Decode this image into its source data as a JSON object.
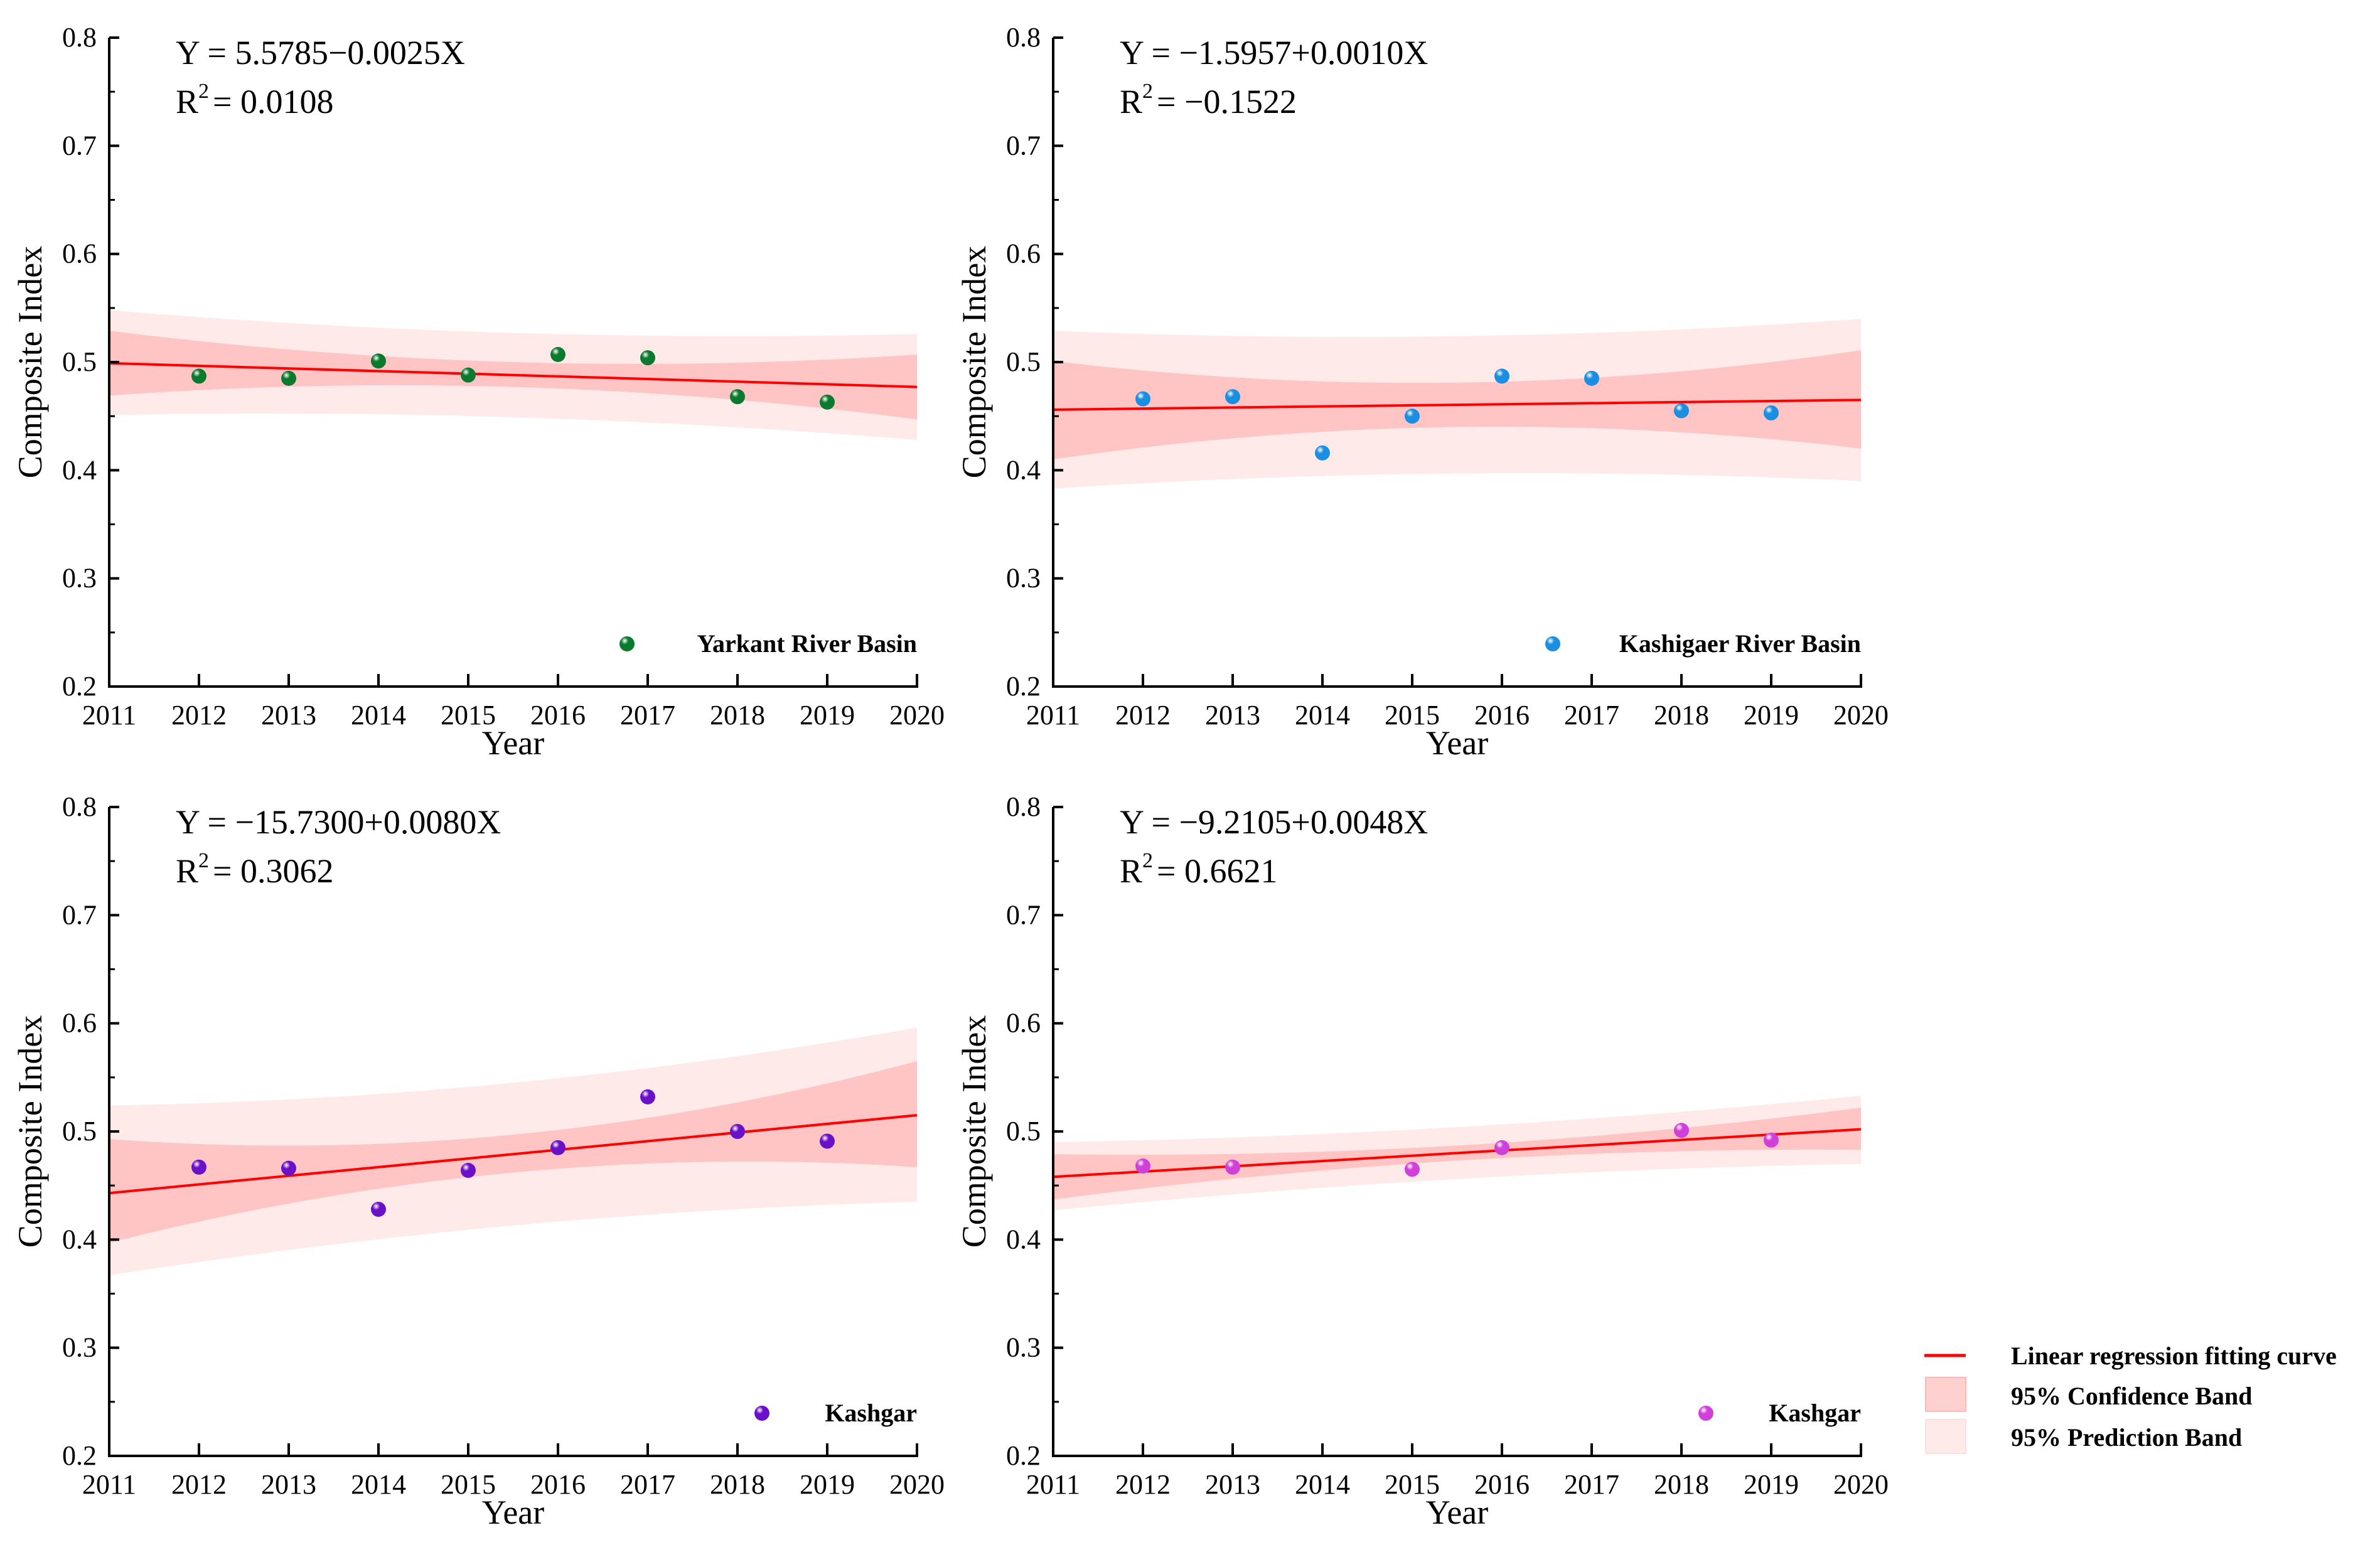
{
  "legend": {
    "line_label": "Linear regression fitting curve",
    "conf_label": "95% Confidence Band",
    "pred_label": "95% Prediction Band"
  },
  "colors": {
    "line": "#ff0000",
    "conf": "#ffc4c4",
    "pred": "#ffeaea"
  },
  "chart_data": [
    {
      "type": "scatter",
      "title": "Yarkant River Basin",
      "series_name": "Yarkant River Basin",
      "equation": "Y  = 5.5785−0.0025X",
      "r2_prefix": "R",
      "r2_sup": "2",
      "r2_value": "= 0.0108",
      "xlabel": "Year",
      "ylabel": "Composite Index",
      "xlim": [
        2011,
        2020
      ],
      "ylim": [
        0.2,
        0.8
      ],
      "xticks": [
        "2011",
        "2012",
        "2013",
        "2014",
        "2015",
        "2016",
        "2017",
        "2018",
        "2019",
        "2020"
      ],
      "yticks": [
        "0.2",
        "0.3",
        "0.4",
        "0.5",
        "0.6",
        "0.7",
        "0.8"
      ],
      "marker_color": "#0a7a2e",
      "x": [
        2012,
        2013,
        2014,
        2015,
        2016,
        2017,
        2018,
        2019
      ],
      "y": [
        0.487,
        0.485,
        0.501,
        0.488,
        0.507,
        0.504,
        0.468,
        0.463
      ],
      "fit": [
        0.499,
        0.477
      ],
      "band_x": [
        2011,
        2015.5,
        2020
      ],
      "conf_lower": [
        0.469,
        0.477,
        0.447
      ],
      "conf_upper": [
        0.529,
        0.5,
        0.507
      ],
      "pred_lower": [
        0.451,
        0.449,
        0.428
      ],
      "pred_upper": [
        0.548,
        0.527,
        0.526
      ]
    },
    {
      "type": "scatter",
      "title": "Kashigaer River Basin",
      "series_name": "Kashigaer River Basin",
      "equation": "Y  = −1.5957+0.0010X",
      "r2_prefix": "R",
      "r2_sup": "2",
      "r2_value": "= −0.1522",
      "xlabel": "Year",
      "ylabel": "Composite Index",
      "xlim": [
        2011,
        2020
      ],
      "ylim": [
        0.2,
        0.8
      ],
      "xticks": [
        "2011",
        "2012",
        "2013",
        "2014",
        "2015",
        "2016",
        "2017",
        "2018",
        "2019",
        "2020"
      ],
      "yticks": [
        "0.2",
        "0.3",
        "0.4",
        "0.5",
        "0.6",
        "0.7",
        "0.8"
      ],
      "marker_color": "#1a8ee0",
      "x": [
        2012,
        2013,
        2014,
        2015,
        2016,
        2017,
        2018,
        2019
      ],
      "y": [
        0.466,
        0.468,
        0.416,
        0.45,
        0.487,
        0.485,
        0.455,
        0.453
      ],
      "fit": [
        0.456,
        0.465
      ],
      "band_x": [
        2011,
        2015.5,
        2020
      ],
      "conf_lower": [
        0.41,
        0.44,
        0.42
      ],
      "conf_upper": [
        0.501,
        0.481,
        0.511
      ],
      "pred_lower": [
        0.383,
        0.397,
        0.39
      ],
      "pred_upper": [
        0.529,
        0.524,
        0.54
      ]
    },
    {
      "type": "scatter",
      "title": "Kashgar",
      "series_name": "Kashgar",
      "equation": "Y  = −15.7300+0.0080X",
      "r2_prefix": "R",
      "r2_sup": "2",
      "r2_value": "= 0.3062",
      "xlabel": "Year",
      "ylabel": "Composite Index",
      "xlim": [
        2011,
        2020
      ],
      "ylim": [
        0.2,
        0.8
      ],
      "xticks": [
        "2011",
        "2012",
        "2013",
        "2014",
        "2015",
        "2016",
        "2017",
        "2018",
        "2019",
        "2020"
      ],
      "yticks": [
        "0.2",
        "0.3",
        "0.4",
        "0.5",
        "0.6",
        "0.7",
        "0.8"
      ],
      "marker_color": "#6a10c8",
      "x": [
        2012,
        2013,
        2014,
        2015,
        2016,
        2017,
        2018,
        2019
      ],
      "y": [
        0.467,
        0.466,
        0.428,
        0.464,
        0.485,
        0.532,
        0.5,
        0.491
      ],
      "fit": [
        0.443,
        0.515
      ],
      "band_x": [
        2011,
        2015.5,
        2020
      ],
      "conf_lower": [
        0.397,
        0.462,
        0.467
      ],
      "conf_upper": [
        0.493,
        0.497,
        0.565
      ],
      "pred_lower": [
        0.367,
        0.413,
        0.435
      ],
      "pred_upper": [
        0.524,
        0.545,
        0.596
      ]
    },
    {
      "type": "scatter",
      "title": "Kashgar",
      "series_name": "Kashgar",
      "equation": "Y  = −9.2105+0.0048X",
      "r2_prefix": "R",
      "r2_sup": "2",
      "r2_value": "= 0.6621",
      "xlabel": "Year",
      "ylabel": "Composite Index",
      "xlim": [
        2011,
        2020
      ],
      "ylim": [
        0.2,
        0.8
      ],
      "xticks": [
        "2011",
        "2012",
        "2013",
        "2014",
        "2015",
        "2016",
        "2017",
        "2018",
        "2019",
        "2020"
      ],
      "yticks": [
        "0.2",
        "0.3",
        "0.4",
        "0.5",
        "0.6",
        "0.7",
        "0.8"
      ],
      "marker_color": "#d040d8",
      "x": [
        2012,
        2013,
        2015,
        2016,
        2018,
        2019
      ],
      "y": [
        0.468,
        0.467,
        0.465,
        0.485,
        0.501,
        0.492
      ],
      "fit": [
        0.458,
        0.502
      ],
      "band_x": [
        2011,
        2015.5,
        2020
      ],
      "conf_lower": [
        0.437,
        0.473,
        0.483
      ],
      "conf_upper": [
        0.479,
        0.487,
        0.522
      ],
      "pred_lower": [
        0.427,
        0.456,
        0.47
      ],
      "pred_upper": [
        0.49,
        0.504,
        0.533
      ]
    }
  ]
}
